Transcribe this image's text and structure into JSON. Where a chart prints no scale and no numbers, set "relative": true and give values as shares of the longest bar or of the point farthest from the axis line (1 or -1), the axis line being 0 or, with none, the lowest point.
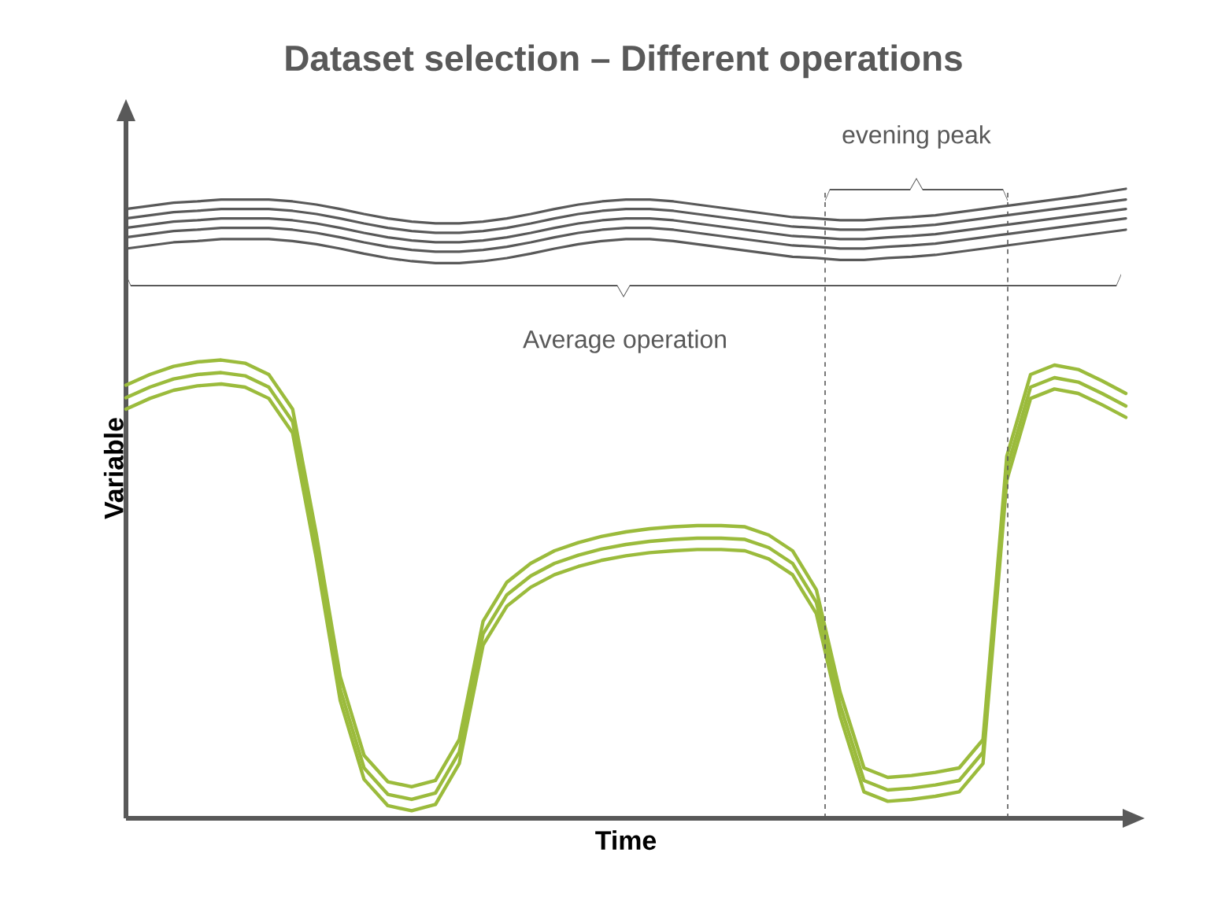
{
  "chart_data": {
    "type": "line",
    "title": "Dataset selection – Different operations",
    "xlabel": "Time",
    "ylabel": "Variable",
    "relative": true,
    "marker": "none",
    "line_style": "solid",
    "categories": [
      null,
      null,
      null,
      null,
      null,
      null,
      null,
      null,
      null,
      null,
      null,
      null,
      null,
      null,
      null,
      null,
      null,
      null,
      null,
      null,
      null,
      null,
      null,
      null,
      null,
      null,
      null,
      null,
      null,
      null,
      null,
      null,
      null,
      null,
      null,
      null,
      null,
      null,
      null,
      null,
      null,
      null,
      null
    ],
    "annotations": [
      "Average operation",
      "evening peak"
    ],
    "series": [
      {
        "color": "#595959",
        "values": [
          0.968,
          0.973,
          0.978,
          0.98,
          0.983,
          0.983,
          0.983,
          0.98,
          0.975,
          0.968,
          0.96,
          0.953,
          0.948,
          0.945,
          0.945,
          0.948,
          0.953,
          0.96,
          0.968,
          0.975,
          0.98,
          0.983,
          0.983,
          0.98,
          0.975,
          0.97,
          0.965,
          0.96,
          0.955,
          0.953,
          0.95,
          0.95,
          0.953,
          0.955,
          0.958,
          0.963,
          0.968,
          0.973,
          0.978,
          0.983,
          0.988,
          0.994,
          1.0
        ]
      },
      {
        "color": "#595959",
        "values": [
          0.953,
          0.958,
          0.963,
          0.965,
          0.968,
          0.968,
          0.968,
          0.965,
          0.96,
          0.953,
          0.945,
          0.938,
          0.933,
          0.93,
          0.93,
          0.933,
          0.938,
          0.945,
          0.953,
          0.96,
          0.965,
          0.968,
          0.968,
          0.965,
          0.96,
          0.955,
          0.95,
          0.945,
          0.94,
          0.938,
          0.935,
          0.935,
          0.938,
          0.94,
          0.943,
          0.948,
          0.953,
          0.958,
          0.963,
          0.968,
          0.973,
          0.978,
          0.983
        ]
      },
      {
        "color": "#595959",
        "values": [
          0.938,
          0.943,
          0.948,
          0.95,
          0.953,
          0.953,
          0.953,
          0.95,
          0.945,
          0.938,
          0.93,
          0.923,
          0.918,
          0.915,
          0.915,
          0.918,
          0.923,
          0.93,
          0.938,
          0.945,
          0.95,
          0.953,
          0.953,
          0.95,
          0.945,
          0.94,
          0.935,
          0.93,
          0.925,
          0.923,
          0.92,
          0.92,
          0.923,
          0.925,
          0.928,
          0.933,
          0.938,
          0.943,
          0.948,
          0.953,
          0.958,
          0.963,
          0.968
        ]
      },
      {
        "color": "#595959",
        "values": [
          0.923,
          0.928,
          0.933,
          0.935,
          0.938,
          0.938,
          0.938,
          0.935,
          0.93,
          0.923,
          0.915,
          0.908,
          0.903,
          0.9,
          0.9,
          0.903,
          0.908,
          0.915,
          0.923,
          0.93,
          0.935,
          0.938,
          0.938,
          0.935,
          0.93,
          0.925,
          0.92,
          0.915,
          0.91,
          0.908,
          0.905,
          0.905,
          0.908,
          0.91,
          0.913,
          0.918,
          0.923,
          0.928,
          0.933,
          0.938,
          0.943,
          0.948,
          0.953
        ]
      },
      {
        "color": "#595959",
        "values": [
          0.905,
          0.91,
          0.915,
          0.917,
          0.92,
          0.92,
          0.92,
          0.917,
          0.912,
          0.905,
          0.897,
          0.89,
          0.885,
          0.882,
          0.882,
          0.885,
          0.89,
          0.897,
          0.905,
          0.912,
          0.917,
          0.92,
          0.92,
          0.917,
          0.912,
          0.907,
          0.902,
          0.897,
          0.892,
          0.89,
          0.887,
          0.887,
          0.89,
          0.892,
          0.895,
          0.9,
          0.905,
          0.91,
          0.915,
          0.92,
          0.925,
          0.93,
          0.935
        ]
      },
      {
        "color": "#9bbb3c",
        "values": [
          0.688,
          0.705,
          0.718,
          0.725,
          0.728,
          0.723,
          0.705,
          0.65,
          0.45,
          0.225,
          0.1,
          0.058,
          0.05,
          0.06,
          0.125,
          0.313,
          0.375,
          0.405,
          0.425,
          0.438,
          0.448,
          0.455,
          0.46,
          0.463,
          0.465,
          0.465,
          0.463,
          0.45,
          0.425,
          0.363,
          0.2,
          0.08,
          0.065,
          0.068,
          0.073,
          0.08,
          0.125,
          0.575,
          0.705,
          0.72,
          0.713,
          0.695,
          0.675
        ]
      },
      {
        "color": "#9bbb3c",
        "values": [
          0.668,
          0.685,
          0.698,
          0.705,
          0.708,
          0.703,
          0.685,
          0.63,
          0.43,
          0.205,
          0.08,
          0.038,
          0.03,
          0.04,
          0.105,
          0.293,
          0.355,
          0.385,
          0.405,
          0.418,
          0.428,
          0.435,
          0.44,
          0.443,
          0.445,
          0.445,
          0.443,
          0.43,
          0.405,
          0.343,
          0.18,
          0.06,
          0.045,
          0.048,
          0.053,
          0.06,
          0.105,
          0.555,
          0.685,
          0.7,
          0.693,
          0.675,
          0.655
        ]
      },
      {
        "color": "#9bbb3c",
        "values": [
          0.65,
          0.667,
          0.68,
          0.687,
          0.69,
          0.685,
          0.667,
          0.612,
          0.412,
          0.187,
          0.062,
          0.02,
          0.012,
          0.022,
          0.087,
          0.275,
          0.337,
          0.367,
          0.387,
          0.4,
          0.41,
          0.417,
          0.422,
          0.425,
          0.427,
          0.427,
          0.425,
          0.412,
          0.387,
          0.325,
          0.162,
          0.042,
          0.027,
          0.03,
          0.035,
          0.042,
          0.087,
          0.537,
          0.667,
          0.682,
          0.675,
          0.657,
          0.637
        ]
      }
    ]
  }
}
